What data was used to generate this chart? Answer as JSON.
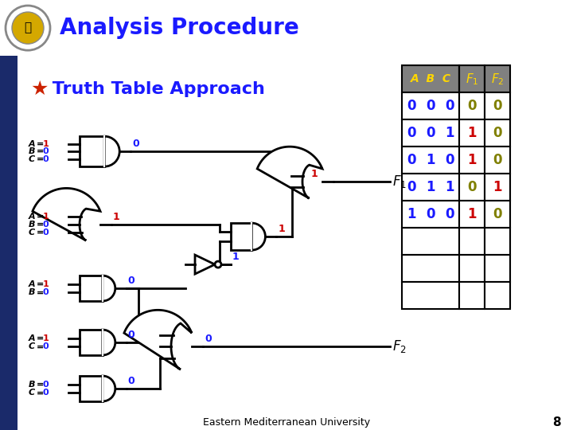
{
  "title": "Analysis Procedure",
  "title_color": "#1a1aff",
  "header_bg": "#FFA500",
  "slide_bg": "#ffffff",
  "subtitle_star_color": "#cc2200",
  "subtitle_text": " Truth Table Approach",
  "subtitle_color": "#1a1aff",
  "footer_text": "Eastern Mediterranean University",
  "page_number": "8",
  "table": {
    "header_bg": "#808080",
    "header_color": "#FFD700",
    "rows": [
      [
        "0",
        "0",
        "0",
        "0",
        "0"
      ],
      [
        "0",
        "0",
        "1",
        "1",
        "0"
      ],
      [
        "0",
        "1",
        "0",
        "1",
        "0"
      ],
      [
        "0",
        "1",
        "1",
        "0",
        "1"
      ],
      [
        "1",
        "0",
        "0",
        "1",
        "0"
      ],
      [
        "",
        "",
        "",
        "",
        ""
      ],
      [
        "",
        "",
        "",
        "",
        ""
      ],
      [
        "",
        "",
        "",
        "",
        ""
      ]
    ],
    "abc_color": "#1a1aff",
    "f1_colors": [
      "#808000",
      "#cc0000",
      "#cc0000",
      "#808000",
      "#cc0000",
      "",
      "",
      ""
    ],
    "f2_colors": [
      "#808000",
      "#808000",
      "#808000",
      "#cc0000",
      "#808000",
      "",
      "",
      ""
    ]
  }
}
